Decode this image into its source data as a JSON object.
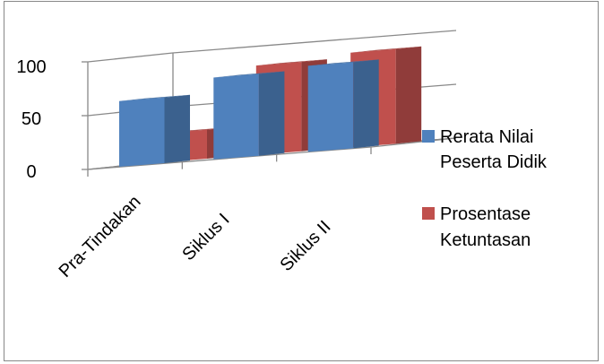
{
  "chart_data": {
    "type": "bar",
    "style": "3d-clustered-column",
    "categories": [
      "Pra-Tindakan",
      "Siklus I",
      "Siklus II"
    ],
    "series": [
      {
        "name_lines": [
          "Rerata Nilai",
          "Peserta Didik"
        ],
        "values": [
          61,
          76,
          80
        ],
        "color": "#4F81BD"
      },
      {
        "name_lines": [
          "Prosentase",
          "Ketuntasan"
        ],
        "values": [
          27,
          83,
          88
        ],
        "color": "#C0504D"
      }
    ],
    "y_ticks": [
      "0",
      "50",
      "100"
    ],
    "ylim": [
      0,
      100
    ],
    "grid": true,
    "legend_position": "right"
  }
}
